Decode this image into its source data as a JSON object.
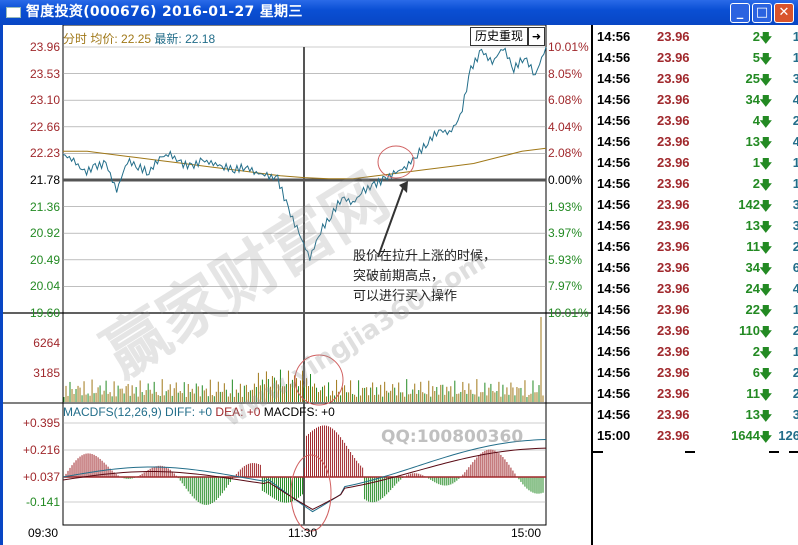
{
  "window": {
    "title": "智度投资(000676) 2016-01-27 星期三",
    "buttons": [
      "minimize",
      "maximize",
      "close"
    ]
  },
  "header": {
    "label": "分时",
    "avg_label": "均价:",
    "avg": "22.25",
    "last_label": "最新:",
    "last": "22.18"
  },
  "toolbar": {
    "history": "历史重现",
    "jump_icon": "arrow-right-bar-icon"
  },
  "price_axis": {
    "left": [
      "23.96",
      "23.53",
      "23.10",
      "22.66",
      "22.23",
      "21.78",
      "21.36",
      "20.92",
      "20.49",
      "20.04",
      "19.60"
    ],
    "right": [
      "10.01%",
      "8.05%",
      "6.08%",
      "4.04%",
      "2.08%",
      "0.00%",
      "1.93%",
      "3.97%",
      "5.93%",
      "7.97%",
      "10.01%"
    ],
    "prev_close": 21.78
  },
  "volume_axis": [
    "6264",
    "3185"
  ],
  "macd": {
    "title": "MACDFS(12,26,9)",
    "diff": "DIFF: +0",
    "dea": "DEA: +0",
    "macdfs": "MACDFS: +0",
    "axis": [
      "+0.395",
      "+0.216",
      "+0.037",
      "-0.141"
    ]
  },
  "time_axis": [
    "09:30",
    "11:30",
    "15:00"
  ],
  "price_series": [
    22.2,
    22.1,
    21.9,
    22.0,
    22.05,
    21.6,
    22.1,
    22.0,
    21.9,
    22.15,
    22.2,
    22.05,
    22.0,
    22.1,
    22.05,
    22.0,
    21.95,
    22.0,
    21.9,
    21.85,
    21.8,
    21.3,
    20.9,
    20.5,
    20.95,
    21.2,
    21.5,
    21.4,
    21.6,
    21.7,
    21.8,
    21.9,
    22.0,
    22.2,
    22.4,
    22.6,
    22.55,
    22.8,
    23.6,
    23.9,
    23.7,
    23.96,
    23.6,
    23.8,
    23.5,
    23.96
  ],
  "avg_series": [
    22.25,
    22.25,
    22.2,
    22.15,
    22.1,
    22.05,
    22.0,
    21.95,
    21.9,
    21.85,
    21.82,
    21.8,
    21.8,
    21.85,
    21.9,
    21.95,
    22.0,
    22.05,
    22.15,
    22.25,
    22.3
  ],
  "annotation": [
    "股价在拉升上涨的时候，",
    "突破前期高点，",
    "可以进行买入操作"
  ],
  "watermark": {
    "main": "赢家财富网",
    "url": "www.yingjia360.com",
    "qq": "QQ:100800360"
  },
  "ticks": [
    {
      "time": "14:56",
      "price": "23.96",
      "vol": "2",
      "n": "1"
    },
    {
      "time": "14:56",
      "price": "23.96",
      "vol": "5",
      "n": "1"
    },
    {
      "time": "14:56",
      "price": "23.96",
      "vol": "25",
      "n": "3"
    },
    {
      "time": "14:56",
      "price": "23.96",
      "vol": "34",
      "n": "4"
    },
    {
      "time": "14:56",
      "price": "23.96",
      "vol": "4",
      "n": "2"
    },
    {
      "time": "14:56",
      "price": "23.96",
      "vol": "13",
      "n": "4"
    },
    {
      "time": "14:56",
      "price": "23.96",
      "vol": "1",
      "n": "1"
    },
    {
      "time": "14:56",
      "price": "23.96",
      "vol": "2",
      "n": "1"
    },
    {
      "time": "14:56",
      "price": "23.96",
      "vol": "142",
      "n": "3"
    },
    {
      "time": "14:56",
      "price": "23.96",
      "vol": "13",
      "n": "3"
    },
    {
      "time": "14:56",
      "price": "23.96",
      "vol": "11",
      "n": "2"
    },
    {
      "time": "14:56",
      "price": "23.96",
      "vol": "34",
      "n": "6"
    },
    {
      "time": "14:56",
      "price": "23.96",
      "vol": "24",
      "n": "4"
    },
    {
      "time": "14:56",
      "price": "23.96",
      "vol": "22",
      "n": "1"
    },
    {
      "time": "14:56",
      "price": "23.96",
      "vol": "110",
      "n": "2"
    },
    {
      "time": "14:56",
      "price": "23.96",
      "vol": "2",
      "n": "1"
    },
    {
      "time": "14:56",
      "price": "23.96",
      "vol": "6",
      "n": "2"
    },
    {
      "time": "14:56",
      "price": "23.96",
      "vol": "11",
      "n": "2"
    },
    {
      "time": "14:56",
      "price": "23.96",
      "vol": "13",
      "n": "3"
    },
    {
      "time": "15:00",
      "price": "23.96",
      "vol": "1644",
      "n": "126"
    }
  ],
  "colors": {
    "up": "#a0282c",
    "down": "#238a23",
    "price_line": "#236e8a",
    "avg_line": "#a07818",
    "title_bar": "#0a4fd4"
  }
}
